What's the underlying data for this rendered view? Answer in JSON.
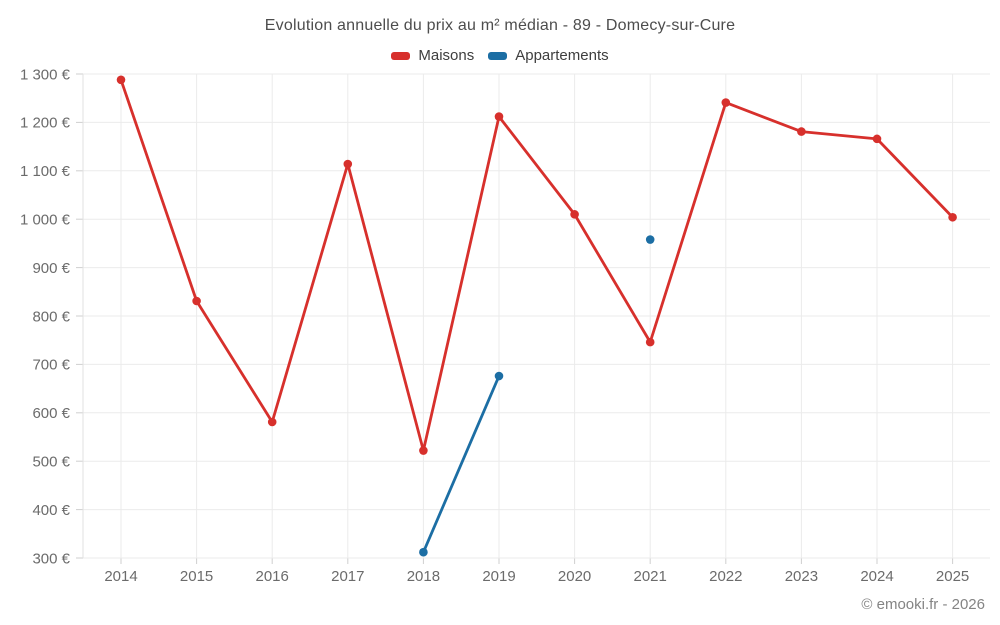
{
  "header": {
    "title": "Evolution annuelle du prix au m² médian - 89 - Domecy-sur-Cure"
  },
  "legend": [
    {
      "label": "Maisons",
      "color": "#d7302c"
    },
    {
      "label": "Appartements",
      "color": "#1c6ea4"
    }
  ],
  "footer": {
    "text": "© emooki.fr - 2026"
  },
  "colors": {
    "maisons": "#d7302c",
    "appartements": "#1c6ea4",
    "gridline": "#ebebeb",
    "axis_line": "#e2e2e2",
    "tick_mark": "#cfcfcf",
    "tick_label": "#6b6b6b",
    "title_text": "#4d4d4d",
    "footer_text": "#848484"
  },
  "chart_data": {
    "type": "line",
    "title": "Evolution annuelle du prix au m² médian - 89 - Domecy-sur-Cure",
    "xlabel": "",
    "ylabel": "",
    "x": [
      2014,
      2015,
      2016,
      2017,
      2018,
      2019,
      2020,
      2021,
      2022,
      2023,
      2024,
      2025
    ],
    "x_labels": [
      "2014",
      "2015",
      "2016",
      "2017",
      "2018",
      "2019",
      "2020",
      "2021",
      "2022",
      "2023",
      "2024",
      "2025"
    ],
    "ylim": [
      300,
      1300
    ],
    "y_ticks": [
      300,
      400,
      500,
      600,
      700,
      800,
      900,
      1000,
      1100,
      1200,
      1300
    ],
    "y_tick_labels": [
      "300 €",
      "400 €",
      "500 €",
      "600 €",
      "700 €",
      "800 €",
      "900 €",
      "1 000 €",
      "1 100 €",
      "1 200 €",
      "1 300 €"
    ],
    "grid": true,
    "legend_position": "top",
    "series": [
      {
        "name": "Maisons",
        "color": "#d7302c",
        "values": [
          1288,
          831,
          581,
          1114,
          522,
          1212,
          1010,
          746,
          1241,
          1181,
          1166,
          1004
        ]
      },
      {
        "name": "Appartements",
        "color": "#1c6ea4",
        "values": [
          null,
          null,
          null,
          null,
          312,
          676,
          null,
          958,
          null,
          null,
          null,
          null
        ]
      }
    ]
  }
}
